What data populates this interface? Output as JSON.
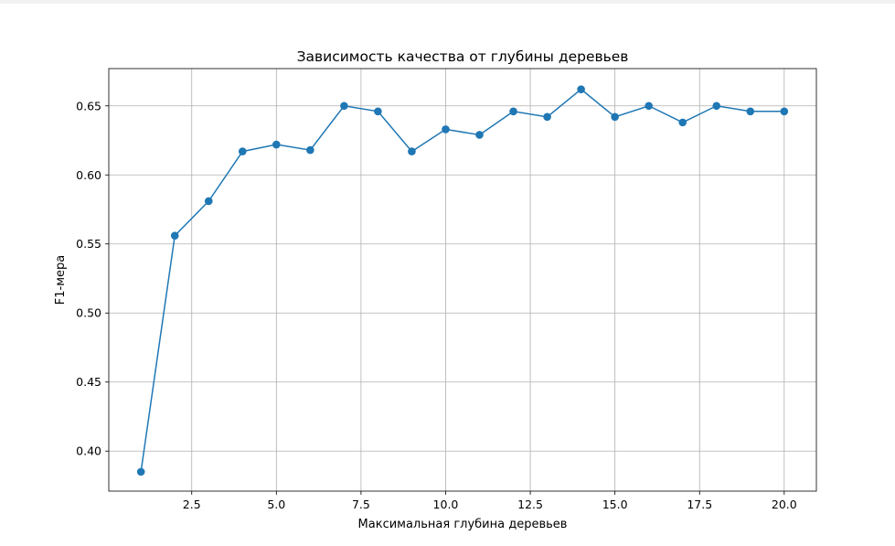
{
  "chart_data": {
    "type": "line",
    "title": "Зависимость качества от глубины деревьев",
    "xlabel": "Максимальная глубина деревьев",
    "ylabel": "F1-мера",
    "xlim": [
      0.05,
      20.95
    ],
    "ylim": [
      0.371,
      0.677
    ],
    "xticks": [
      2.5,
      5.0,
      7.5,
      10.0,
      12.5,
      15.0,
      17.5,
      20.0
    ],
    "xtick_labels": [
      "2.5",
      "5.0",
      "7.5",
      "10.0",
      "12.5",
      "15.0",
      "17.5",
      "20.0"
    ],
    "yticks": [
      0.4,
      0.45,
      0.5,
      0.55,
      0.6,
      0.65
    ],
    "ytick_labels": [
      "0.40",
      "0.45",
      "0.50",
      "0.55",
      "0.60",
      "0.65"
    ],
    "grid": true,
    "color": "#1f77b4",
    "marker": "circle",
    "x": [
      1,
      2,
      3,
      4,
      5,
      6,
      7,
      8,
      9,
      10,
      11,
      12,
      13,
      14,
      15,
      16,
      17,
      18,
      19,
      20
    ],
    "y": [
      0.385,
      0.556,
      0.581,
      0.617,
      0.622,
      0.618,
      0.65,
      0.646,
      0.617,
      0.633,
      0.629,
      0.646,
      0.642,
      0.662,
      0.642,
      0.65,
      0.638,
      0.65,
      0.646,
      0.646
    ]
  }
}
